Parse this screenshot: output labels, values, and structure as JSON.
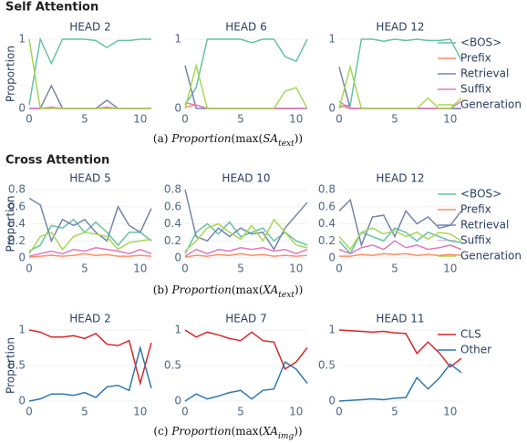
{
  "sections": [
    "Self Attention",
    "Cross Attention"
  ],
  "captions": [
    [
      "(a) ",
      "Proportion",
      "(max(",
      "SA",
      "text",
      "))"
    ],
    [
      "(b) ",
      "Proportion",
      "(max(",
      "XA",
      "text",
      "))"
    ],
    [
      "(c) ",
      "Proportion",
      "(max(",
      "XA",
      "img",
      "))"
    ]
  ],
  "chart_data": [
    {
      "type": "line",
      "title": "HEAD 2",
      "ylabel": "Proportion",
      "x": [
        0,
        1,
        2,
        3,
        4,
        5,
        6,
        7,
        8,
        9,
        10,
        11
      ],
      "xlim": [
        0,
        11
      ],
      "xticks": [
        0,
        5,
        10
      ],
      "ylim": [
        0,
        1
      ],
      "yticks": [
        0,
        1
      ],
      "series": [
        {
          "name": "<BOS>",
          "color": "#66c2a5",
          "values": [
            0.05,
            1,
            0.65,
            1,
            1,
            1,
            0.98,
            0.88,
            0.98,
            0.98,
            1,
            1
          ]
        },
        {
          "name": "Prefix",
          "color": "#fc8d62",
          "values": [
            0,
            0,
            0,
            0,
            0,
            0,
            0,
            0,
            0,
            0,
            0,
            0
          ]
        },
        {
          "name": "Retrieval",
          "color": "#7585ad",
          "values": [
            0,
            0,
            0.33,
            0,
            0,
            0,
            0,
            0.12,
            0,
            0,
            0,
            0
          ]
        },
        {
          "name": "Suffix",
          "color": "#e078c0",
          "values": [
            0,
            0,
            0.02,
            0,
            0,
            0,
            0,
            0.02,
            0,
            0,
            0,
            0
          ]
        },
        {
          "name": "Generation",
          "color": "#a6d854",
          "values": [
            1,
            0,
            0,
            0,
            0,
            0,
            0,
            0,
            0,
            0,
            0,
            0
          ]
        }
      ]
    },
    {
      "type": "line",
      "title": "HEAD 6",
      "x": [
        0,
        1,
        2,
        3,
        4,
        5,
        6,
        7,
        8,
        9,
        10,
        11
      ],
      "xlim": [
        0,
        11
      ],
      "xticks": [
        0,
        5,
        10
      ],
      "ylim": [
        0,
        1
      ],
      "yticks": [
        0,
        1
      ],
      "series": [
        {
          "name": "<BOS>",
          "color": "#66c2a5",
          "values": [
            0.05,
            0.3,
            1,
            1,
            1,
            1,
            0.95,
            1,
            1,
            0.75,
            0.68,
            1
          ]
        },
        {
          "name": "Prefix",
          "color": "#fc8d62",
          "values": [
            0.02,
            0.05,
            0,
            0,
            0,
            0,
            0,
            0,
            0,
            0,
            0,
            0
          ]
        },
        {
          "name": "Retrieval",
          "color": "#7585ad",
          "values": [
            0.62,
            0,
            0,
            0,
            0,
            0,
            0,
            0,
            0,
            0,
            0,
            0
          ]
        },
        {
          "name": "Suffix",
          "color": "#e078c0",
          "values": [
            0.08,
            0.05,
            0,
            0,
            0,
            0,
            0,
            0,
            0,
            0,
            0,
            0
          ]
        },
        {
          "name": "Generation",
          "color": "#a6d854",
          "values": [
            0,
            0.62,
            0,
            0,
            0,
            0,
            0,
            0,
            0,
            0.25,
            0.3,
            0
          ]
        }
      ]
    },
    {
      "type": "line",
      "title": "HEAD 12",
      "x": [
        0,
        1,
        2,
        3,
        4,
        5,
        6,
        7,
        8,
        9,
        10,
        11
      ],
      "xlim": [
        0,
        11
      ],
      "xticks": [
        0,
        5,
        10
      ],
      "ylim": [
        0,
        1
      ],
      "yticks": [
        0,
        1
      ],
      "series": [
        {
          "name": "<BOS>",
          "color": "#66c2a5",
          "values": [
            0.02,
            0.05,
            1,
            1,
            0.97,
            1,
            0.98,
            1,
            0.98,
            0.98,
            1,
            0.7
          ]
        },
        {
          "name": "Prefix",
          "color": "#fc8d62",
          "values": [
            0.05,
            0,
            0,
            0,
            0,
            0,
            0,
            0,
            0,
            0,
            0,
            0
          ]
        },
        {
          "name": "Retrieval",
          "color": "#7585ad",
          "values": [
            0.6,
            0,
            0,
            0,
            0,
            0,
            0,
            0,
            0,
            0,
            0,
            0
          ]
        },
        {
          "name": "Suffix",
          "color": "#e078c0",
          "values": [
            0.1,
            0,
            0,
            0,
            0,
            0,
            0,
            0,
            0,
            0,
            0,
            0.1
          ]
        },
        {
          "name": "Generation",
          "color": "#a6d854",
          "values": [
            0,
            0.6,
            0,
            0,
            0,
            0,
            0,
            0,
            0.15,
            0,
            0,
            0.15
          ]
        }
      ]
    },
    {
      "type": "line",
      "title": "HEAD 5",
      "ylabel": "Proportion",
      "x": [
        0,
        1,
        2,
        3,
        4,
        5,
        6,
        7,
        8,
        9,
        10,
        11
      ],
      "xlim": [
        0,
        11
      ],
      "xticks": [
        0,
        5,
        10
      ],
      "ylim": [
        0,
        0.8
      ],
      "yticks": [
        0,
        0.2,
        0.4,
        0.6,
        0.8
      ],
      "series": [
        {
          "name": "<BOS>",
          "color": "#66c2a5",
          "values": [
            0.08,
            0.15,
            0.38,
            0.35,
            0.45,
            0.3,
            0.42,
            0.3,
            0.15,
            0.3,
            0.3,
            0.2
          ]
        },
        {
          "name": "Prefix",
          "color": "#fc8d62",
          "values": [
            0.01,
            0.02,
            0.03,
            0.02,
            0.03,
            0.05,
            0.03,
            0.04,
            0.02,
            0.02,
            0.03,
            0.02
          ]
        },
        {
          "name": "Retrieval",
          "color": "#7585ad",
          "values": [
            0.7,
            0.62,
            0.2,
            0.45,
            0.38,
            0.45,
            0.3,
            0.2,
            0.6,
            0.38,
            0.3,
            0.58
          ]
        },
        {
          "name": "Suffix",
          "color": "#e078c0",
          "values": [
            0.02,
            0.05,
            0.08,
            0.05,
            0.1,
            0.08,
            0.12,
            0.1,
            0.08,
            0.05,
            0.1,
            0.05
          ]
        },
        {
          "name": "Generation",
          "color": "#a6d854",
          "values": [
            0.05,
            0.25,
            0.3,
            0.1,
            0.25,
            0.3,
            0.28,
            0.25,
            0.1,
            0.18,
            0.2,
            0.22
          ]
        }
      ]
    },
    {
      "type": "line",
      "title": "HEAD 10",
      "x": [
        0,
        1,
        2,
        3,
        4,
        5,
        6,
        7,
        8,
        9,
        10,
        11
      ],
      "xlim": [
        0,
        11
      ],
      "xticks": [
        0,
        5,
        10
      ],
      "ylim": [
        0,
        0.8
      ],
      "yticks": [
        0,
        0.2,
        0.4,
        0.6,
        0.8
      ],
      "series": [
        {
          "name": "<BOS>",
          "color": "#66c2a5",
          "values": [
            0.05,
            0.3,
            0.4,
            0.28,
            0.42,
            0.25,
            0.3,
            0.35,
            0.2,
            0.3,
            0.2,
            0.15
          ]
        },
        {
          "name": "Prefix",
          "color": "#fc8d62",
          "values": [
            0.01,
            0.03,
            0.02,
            0.04,
            0.03,
            0.05,
            0.03,
            0.04,
            0.02,
            0.03,
            0.02,
            0.03
          ]
        },
        {
          "name": "Retrieval",
          "color": "#7585ad",
          "values": [
            0.8,
            0.25,
            0.2,
            0.35,
            0.25,
            0.35,
            0.28,
            0.3,
            0.1,
            0.35,
            0.5,
            0.65
          ]
        },
        {
          "name": "Suffix",
          "color": "#e078c0",
          "values": [
            0.02,
            0.1,
            0.05,
            0.1,
            0.08,
            0.12,
            0.1,
            0.12,
            0.08,
            0.1,
            0.05,
            0.1
          ]
        },
        {
          "name": "Generation",
          "color": "#a6d854",
          "values": [
            0.08,
            0.2,
            0.35,
            0.4,
            0.3,
            0.22,
            0.38,
            0.2,
            0.45,
            0.3,
            0.15,
            0.12
          ]
        }
      ]
    },
    {
      "type": "line",
      "title": "HEAD 12",
      "x": [
        0,
        1,
        2,
        3,
        4,
        5,
        6,
        7,
        8,
        9,
        10,
        11
      ],
      "xlim": [
        0,
        11
      ],
      "xticks": [
        0,
        5,
        10
      ],
      "ylim": [
        0,
        0.8
      ],
      "yticks": [
        0,
        0.2,
        0.4,
        0.6,
        0.8
      ],
      "series": [
        {
          "name": "<BOS>",
          "color": "#66c2a5",
          "values": [
            0.2,
            0.05,
            0.3,
            0.25,
            0.2,
            0.35,
            0.3,
            0.2,
            0.3,
            0.25,
            0.2,
            0.18
          ]
        },
        {
          "name": "Prefix",
          "color": "#fc8d62",
          "values": [
            0.02,
            0.02,
            0.04,
            0.03,
            0.05,
            0.04,
            0.05,
            0.03,
            0.04,
            0.03,
            0.04,
            0.03
          ]
        },
        {
          "name": "Retrieval",
          "color": "#7585ad",
          "values": [
            0.55,
            0.68,
            0.15,
            0.48,
            0.5,
            0.25,
            0.55,
            0.4,
            0.48,
            0.35,
            0.38,
            0.55
          ]
        },
        {
          "name": "Suffix",
          "color": "#e078c0",
          "values": [
            0.1,
            0.05,
            0.12,
            0.15,
            0.1,
            0.2,
            0.12,
            0.15,
            0.1,
            0.12,
            0.15,
            0.1
          ]
        },
        {
          "name": "Generation",
          "color": "#a6d854",
          "values": [
            0.25,
            0.1,
            0.3,
            0.35,
            0.28,
            0.32,
            0.25,
            0.3,
            0.22,
            0.3,
            0.28,
            0.2
          ]
        }
      ]
    },
    {
      "type": "line",
      "title": "HEAD 2",
      "ylabel": "Proportion",
      "x": [
        0,
        1,
        2,
        3,
        4,
        5,
        6,
        7,
        8,
        9,
        10,
        11
      ],
      "xlim": [
        0,
        11
      ],
      "xticks": [
        0,
        5,
        10
      ],
      "ylim": [
        0,
        1
      ],
      "yticks": [
        0,
        0.5,
        1
      ],
      "series": [
        {
          "name": "CLS",
          "color": "#d62728",
          "values": [
            1,
            0.97,
            0.9,
            0.9,
            0.92,
            0.88,
            0.95,
            0.8,
            0.78,
            0.85,
            0.25,
            0.82
          ]
        },
        {
          "name": "Other",
          "color": "#2f77b0",
          "values": [
            0,
            0.03,
            0.1,
            0.1,
            0.08,
            0.12,
            0.05,
            0.2,
            0.22,
            0.15,
            0.75,
            0.18
          ]
        }
      ]
    },
    {
      "type": "line",
      "title": "HEAD 7",
      "x": [
        0,
        1,
        2,
        3,
        4,
        5,
        6,
        7,
        8,
        9,
        10,
        11
      ],
      "xlim": [
        0,
        11
      ],
      "xticks": [
        0,
        5,
        10
      ],
      "ylim": [
        0,
        1
      ],
      "yticks": [
        0,
        0.5,
        1
      ],
      "series": [
        {
          "name": "CLS",
          "color": "#d62728",
          "values": [
            1,
            0.9,
            0.97,
            0.93,
            0.88,
            0.85,
            0.97,
            0.85,
            0.83,
            0.45,
            0.55,
            0.75
          ]
        },
        {
          "name": "Other",
          "color": "#2f77b0",
          "values": [
            0,
            0.1,
            0.03,
            0.07,
            0.12,
            0.15,
            0.03,
            0.15,
            0.17,
            0.55,
            0.45,
            0.25
          ]
        }
      ]
    },
    {
      "type": "line",
      "title": "HEAD 11",
      "x": [
        0,
        1,
        2,
        3,
        4,
        5,
        6,
        7,
        8,
        9,
        10,
        11
      ],
      "xlim": [
        0,
        11
      ],
      "xticks": [
        0,
        5,
        10
      ],
      "ylim": [
        0,
        1
      ],
      "yticks": [
        0,
        0.5,
        1
      ],
      "series": [
        {
          "name": "CLS",
          "color": "#d62728",
          "values": [
            1,
            0.99,
            0.98,
            0.97,
            0.98,
            0.96,
            0.95,
            0.67,
            0.83,
            0.68,
            0.48,
            0.6
          ]
        },
        {
          "name": "Other",
          "color": "#2f77b0",
          "values": [
            0,
            0.01,
            0.02,
            0.03,
            0.02,
            0.04,
            0.05,
            0.33,
            0.17,
            0.32,
            0.52,
            0.4
          ]
        }
      ]
    }
  ]
}
